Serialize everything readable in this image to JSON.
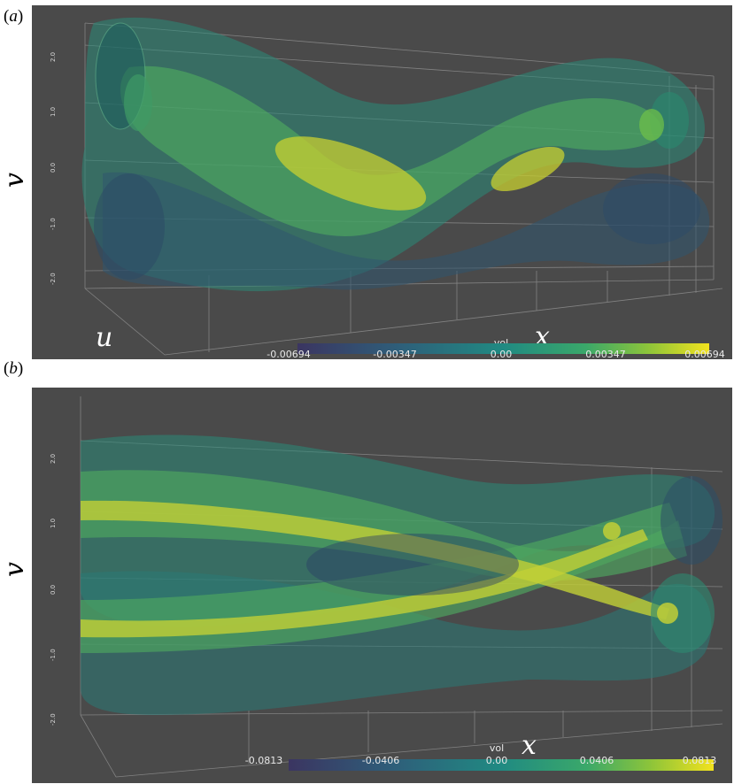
{
  "panels": [
    {
      "label": "a",
      "axis_labels": {
        "v": "v",
        "u": "u",
        "x": "x"
      },
      "v_ticks": [
        "2.0",
        "1.0",
        "0.0",
        "-1.0",
        "-2.0"
      ],
      "colorbar": {
        "title": "vol",
        "ticks": [
          "-0.00694",
          "-0.00347",
          "0.00",
          "0.00347",
          "0.00694"
        ]
      }
    },
    {
      "label": "b",
      "axis_labels": {
        "v": "v",
        "x": "x"
      },
      "v_ticks": [
        "2.0",
        "1.0",
        "0.0",
        "-1.0",
        "-2.0"
      ],
      "colorbar": {
        "title": "vol",
        "ticks": [
          "-0.0813",
          "-0.0406",
          "0.00",
          "0.0406",
          "0.0813"
        ]
      }
    }
  ],
  "colors": {
    "background": "#4a4a4a",
    "colormap": [
      "#3b3561",
      "#2e5f7a",
      "#208a82",
      "#3aa86a",
      "#8cc43a",
      "#f2e21e"
    ]
  }
}
